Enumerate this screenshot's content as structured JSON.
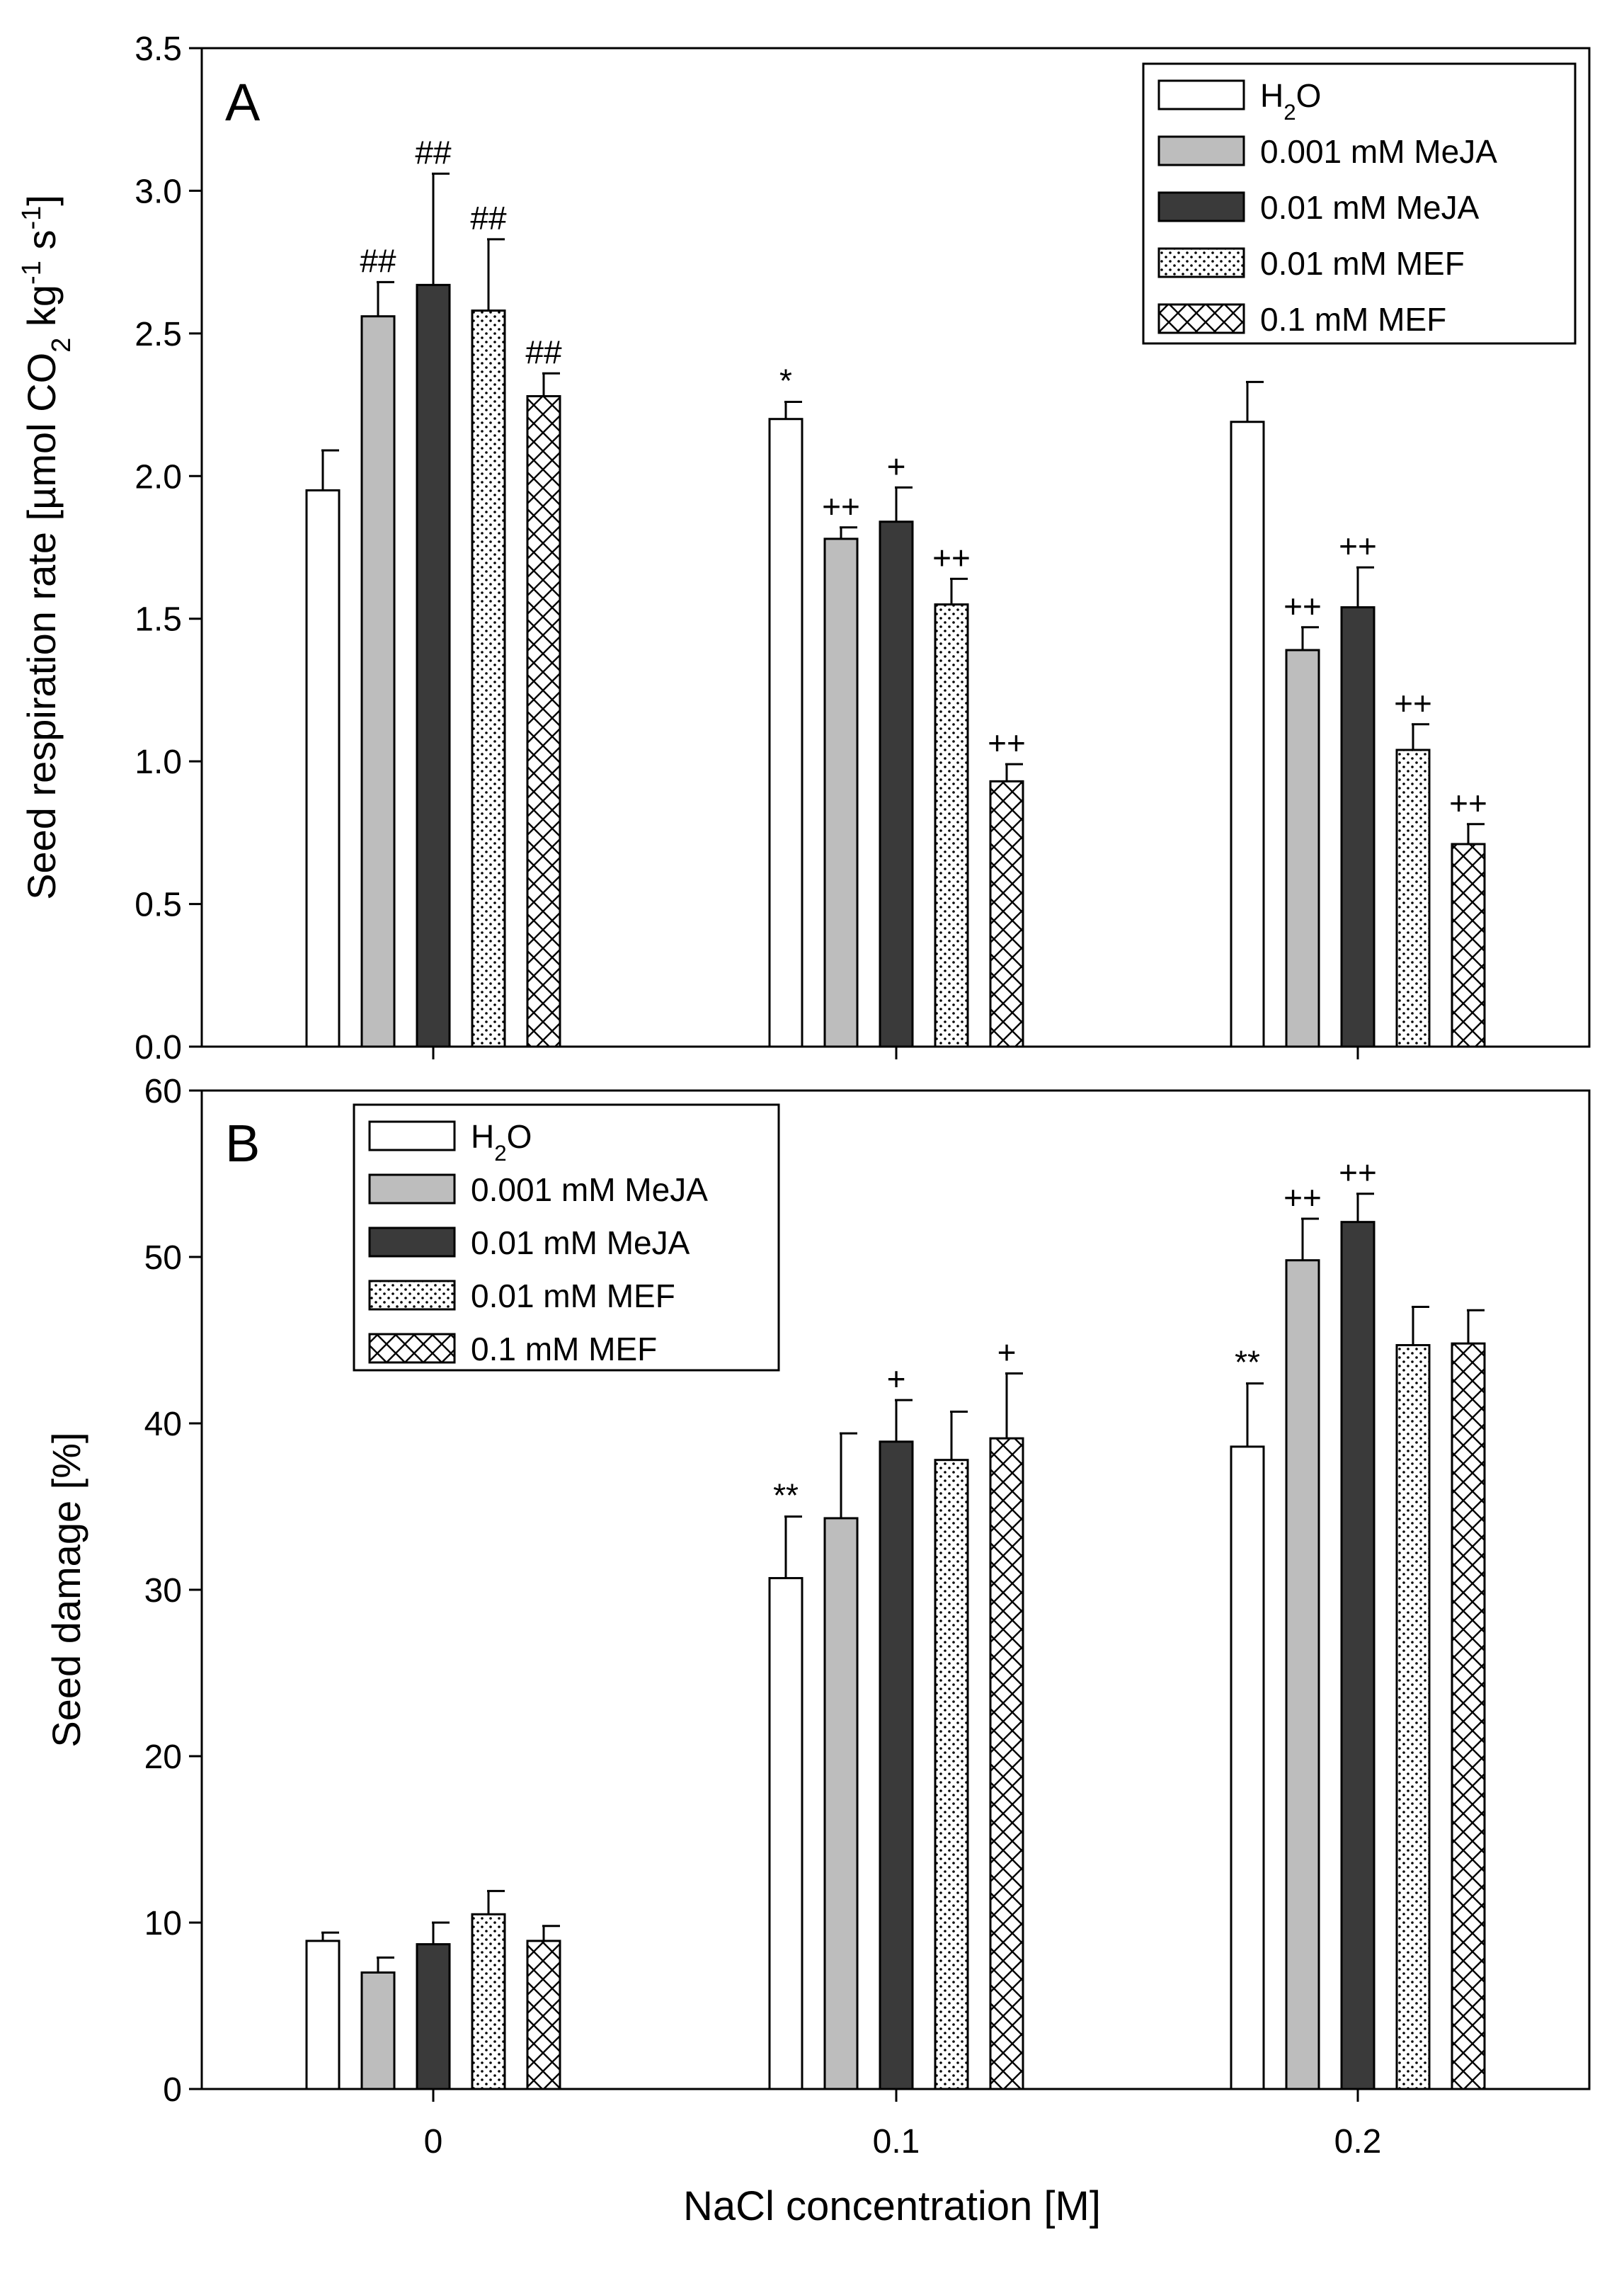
{
  "figure": {
    "xlabel": "NaCl concentration [M]",
    "categories": [
      "0",
      "0.1",
      "0.2"
    ]
  },
  "series_styles": [
    {
      "key": "h2o",
      "fill": "#ffffff",
      "pattern": "none"
    },
    {
      "key": "meja001",
      "fill": "#bdbdbd",
      "pattern": "none"
    },
    {
      "key": "meja01",
      "fill": "#3a3a3a",
      "pattern": "none"
    },
    {
      "key": "mef001",
      "fill": "#ffffff",
      "pattern": "dots"
    },
    {
      "key": "mef01",
      "fill": "#ffffff",
      "pattern": "crosshatch"
    }
  ],
  "chart_data": [
    {
      "type": "bar",
      "panel_label": "A",
      "ylabel_parts": [
        "Seed respiration rate [µmol CO",
        "2",
        " kg",
        "-1",
        " s",
        "-1",
        "]"
      ],
      "ylim": [
        0,
        3.5
      ],
      "yticks": [
        "0.0",
        "0.5",
        "1.0",
        "1.5",
        "2.0",
        "2.5",
        "3.0",
        "3.5"
      ],
      "categories": [
        "0",
        "0.1",
        "0.2"
      ],
      "legend_position": "top-right",
      "series": [
        {
          "name": "H2O",
          "name_parts": [
            "H",
            "2",
            "O"
          ],
          "values": [
            1.95,
            2.2,
            2.19
          ],
          "errors": [
            0.14,
            0.06,
            0.14
          ],
          "annotations": [
            "",
            "*",
            ""
          ]
        },
        {
          "name": "0.001 mM MeJA",
          "values": [
            2.56,
            1.78,
            1.39
          ],
          "errors": [
            0.12,
            0.04,
            0.08
          ],
          "annotations": [
            "##",
            "++",
            "++"
          ]
        },
        {
          "name": "0.01 mM MeJA",
          "values": [
            2.67,
            1.84,
            1.54
          ],
          "errors": [
            0.39,
            0.12,
            0.14
          ],
          "annotations": [
            "##",
            "+",
            "++"
          ]
        },
        {
          "name": "0.01 mM MEF",
          "values": [
            2.58,
            1.55,
            1.04
          ],
          "errors": [
            0.25,
            0.09,
            0.09
          ],
          "annotations": [
            "##",
            "++",
            "++"
          ]
        },
        {
          "name": "0.1 mM MEF",
          "values": [
            2.28,
            0.93,
            0.71
          ],
          "errors": [
            0.08,
            0.06,
            0.07
          ],
          "annotations": [
            "##",
            "++",
            "++"
          ]
        }
      ]
    },
    {
      "type": "bar",
      "panel_label": "B",
      "ylabel_parts": [
        "Seed damage [%]"
      ],
      "ylim": [
        0,
        60
      ],
      "yticks": [
        "0",
        "10",
        "20",
        "30",
        "40",
        "50",
        "60"
      ],
      "categories": [
        "0",
        "0.1",
        "0.2"
      ],
      "legend_position": "top-left",
      "series": [
        {
          "name": "H2O",
          "name_parts": [
            "H",
            "2",
            "O"
          ],
          "values": [
            8.9,
            30.7,
            38.6
          ],
          "errors": [
            0.5,
            3.7,
            3.8
          ],
          "annotations": [
            "",
            "**",
            "**"
          ]
        },
        {
          "name": "0.001 mM MeJA",
          "values": [
            7.0,
            34.3,
            49.8
          ],
          "errors": [
            0.9,
            5.1,
            2.5
          ],
          "annotations": [
            "",
            "",
            "++"
          ]
        },
        {
          "name": "0.01 mM MeJA",
          "values": [
            8.7,
            38.9,
            52.1
          ],
          "errors": [
            1.3,
            2.5,
            1.7
          ],
          "annotations": [
            "",
            "+",
            "++"
          ]
        },
        {
          "name": "0.01 mM MEF",
          "values": [
            10.5,
            37.8,
            44.7
          ],
          "errors": [
            1.4,
            2.9,
            2.3
          ],
          "annotations": [
            "",
            "",
            ""
          ]
        },
        {
          "name": "0.1 mM MEF",
          "values": [
            8.9,
            39.1,
            44.8
          ],
          "errors": [
            0.9,
            3.9,
            2.0
          ],
          "annotations": [
            "",
            "+",
            ""
          ]
        }
      ]
    }
  ]
}
